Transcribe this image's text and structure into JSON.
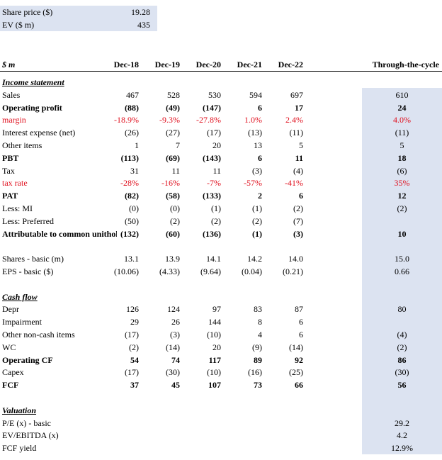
{
  "inputs": [
    {
      "label": "Share price ($)",
      "value": "19.28"
    },
    {
      "label": "EV ($ m)",
      "value": "435"
    }
  ],
  "header": {
    "unit": "$ m",
    "years": [
      "Dec-18",
      "Dec-19",
      "Dec-20",
      "Dec-21",
      "Dec-22"
    ],
    "ttc": "Through-the-cycle"
  },
  "rows": [
    {
      "label": "Income statement",
      "style": "section",
      "values": [
        "",
        "",
        "",
        "",
        ""
      ],
      "ttc": ""
    },
    {
      "label": "Sales",
      "style": "",
      "values": [
        "467",
        "528",
        "530",
        "594",
        "697"
      ],
      "ttc": "610"
    },
    {
      "label": "Operating profit",
      "style": "bold",
      "values": [
        "(88)",
        "(49)",
        "(147)",
        "6",
        "17"
      ],
      "ttc": "24"
    },
    {
      "label": "margin",
      "style": "red",
      "values": [
        "-18.9%",
        "-9.3%",
        "-27.8%",
        "1.0%",
        "2.4%"
      ],
      "ttc": "4.0%"
    },
    {
      "label": "Interest expense (net)",
      "style": "",
      "values": [
        "(26)",
        "(27)",
        "(17)",
        "(13)",
        "(11)"
      ],
      "ttc": "(11)"
    },
    {
      "label": "Other items",
      "style": "",
      "values": [
        "1",
        "7",
        "20",
        "13",
        "5"
      ],
      "ttc": "5"
    },
    {
      "label": "PBT",
      "style": "bold",
      "values": [
        "(113)",
        "(69)",
        "(143)",
        "6",
        "11"
      ],
      "ttc": "18"
    },
    {
      "label": "Tax",
      "style": "",
      "values": [
        "31",
        "11",
        "11",
        "(3)",
        "(4)"
      ],
      "ttc": "(6)"
    },
    {
      "label": "tax rate",
      "style": "red",
      "values": [
        "-28%",
        "-16%",
        "-7%",
        "-57%",
        "-41%"
      ],
      "ttc": "35%"
    },
    {
      "label": "PAT",
      "style": "bold",
      "values": [
        "(82)",
        "(58)",
        "(133)",
        "2",
        "6"
      ],
      "ttc": "12"
    },
    {
      "label": "Less: MI",
      "style": "",
      "values": [
        "(0)",
        "(0)",
        "(1)",
        "(1)",
        "(2)"
      ],
      "ttc": "(2)"
    },
    {
      "label": "Less: Preferred",
      "style": "",
      "values": [
        "(50)",
        "(2)",
        "(2)",
        "(2)",
        "(7)"
      ],
      "ttc": ""
    },
    {
      "label": "Attributable to common unitholders",
      "style": "bold",
      "values": [
        "(132)",
        "(60)",
        "(136)",
        "(1)",
        "(3)"
      ],
      "ttc": "10"
    },
    {
      "label": "",
      "style": "",
      "values": [
        "",
        "",
        "",
        "",
        ""
      ],
      "ttc": ""
    },
    {
      "label": "Shares - basic (m)",
      "style": "",
      "values": [
        "13.1",
        "13.9",
        "14.1",
        "14.2",
        "14.0"
      ],
      "ttc": "15.0"
    },
    {
      "label": "EPS - basic ($)",
      "style": "",
      "values": [
        "(10.06)",
        "(4.33)",
        "(9.64)",
        "(0.04)",
        "(0.21)"
      ],
      "ttc": "0.66"
    },
    {
      "label": "",
      "style": "",
      "values": [
        "",
        "",
        "",
        "",
        ""
      ],
      "ttc": ""
    },
    {
      "label": "Cash flow",
      "style": "section",
      "values": [
        "",
        "",
        "",
        "",
        ""
      ],
      "ttc": ""
    },
    {
      "label": "Depr",
      "style": "",
      "values": [
        "126",
        "124",
        "97",
        "83",
        "87"
      ],
      "ttc": "80"
    },
    {
      "label": "Impairment",
      "style": "",
      "values": [
        "29",
        "26",
        "144",
        "8",
        "6"
      ],
      "ttc": ""
    },
    {
      "label": "Other non-cash items",
      "style": "",
      "values": [
        "(17)",
        "(3)",
        "(10)",
        "4",
        "6"
      ],
      "ttc": "(4)"
    },
    {
      "label": "WC",
      "style": "",
      "values": [
        "(2)",
        "(14)",
        "20",
        "(9)",
        "(14)"
      ],
      "ttc": "(2)"
    },
    {
      "label": "Operating CF",
      "style": "bold",
      "values": [
        "54",
        "74",
        "117",
        "89",
        "92"
      ],
      "ttc": "86"
    },
    {
      "label": "Capex",
      "style": "",
      "values": [
        "(17)",
        "(30)",
        "(10)",
        "(16)",
        "(25)"
      ],
      "ttc": "(30)"
    },
    {
      "label": "FCF",
      "style": "bold",
      "values": [
        "37",
        "45",
        "107",
        "73",
        "66"
      ],
      "ttc": "56"
    },
    {
      "label": "",
      "style": "",
      "values": [
        "",
        "",
        "",
        "",
        ""
      ],
      "ttc": ""
    },
    {
      "label": "Valuation",
      "style": "section",
      "values": [
        "",
        "",
        "",
        "",
        ""
      ],
      "ttc": ""
    },
    {
      "label": "P/E (x) - basic",
      "style": "",
      "values": [
        "",
        "",
        "",
        "",
        ""
      ],
      "ttc": "29.2"
    },
    {
      "label": "EV/EBITDA (x)",
      "style": "",
      "values": [
        "",
        "",
        "",
        "",
        ""
      ],
      "ttc": "4.2"
    },
    {
      "label": "FCF yield",
      "style": "",
      "values": [
        "",
        "",
        "",
        "",
        ""
      ],
      "ttc": "12.9%"
    }
  ]
}
